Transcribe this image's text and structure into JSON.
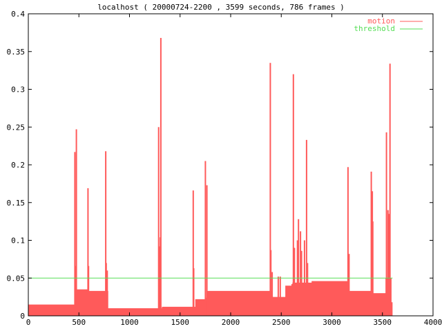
{
  "chart_data": {
    "type": "area",
    "title": "localhost ( 20000724-2200 , 3599 seconds, 786 frames )",
    "xlabel": "",
    "ylabel": "",
    "xlim": [
      0,
      4000
    ],
    "ylim": [
      0,
      0.4
    ],
    "xticks": [
      0,
      500,
      1000,
      1500,
      2000,
      2500,
      3000,
      3500,
      4000
    ],
    "yticks": [
      0,
      0.05,
      0.1,
      0.15,
      0.2,
      0.25,
      0.3,
      0.35,
      0.4
    ],
    "legend_position": "top-right",
    "grid": false,
    "series": [
      {
        "name": "motion",
        "color": "#ff5a5a",
        "style": "filled-impulses",
        "baseline": [
          [
            0,
            0.015
          ],
          [
            450,
            0.015
          ],
          [
            460,
            0.035
          ],
          [
            590,
            0.035
          ],
          [
            600,
            0.033
          ],
          [
            760,
            0.033
          ],
          [
            790,
            0.01
          ],
          [
            1300,
            0.01
          ],
          [
            1320,
            0.012
          ],
          [
            1620,
            0.012
          ],
          [
            1650,
            0.022
          ],
          [
            1750,
            0.024
          ],
          [
            1760,
            0.033
          ],
          [
            2400,
            0.033
          ],
          [
            2410,
            0.025
          ],
          [
            2520,
            0.025
          ],
          [
            2540,
            0.04
          ],
          [
            2600,
            0.042
          ],
          [
            2610,
            0.044
          ],
          [
            2800,
            0.046
          ],
          [
            3000,
            0.046
          ],
          [
            3160,
            0.044
          ],
          [
            3170,
            0.033
          ],
          [
            3400,
            0.033
          ],
          [
            3410,
            0.03
          ],
          [
            3520,
            0.03
          ],
          [
            3530,
            0.05
          ],
          [
            3580,
            0.05
          ],
          [
            3590,
            0.018
          ],
          [
            3600,
            0.018
          ]
        ],
        "spikes": [
          [
            460,
            0.217
          ],
          [
            475,
            0.247
          ],
          [
            470,
            0.066
          ],
          [
            590,
            0.169
          ],
          [
            595,
            0.066
          ],
          [
            765,
            0.218
          ],
          [
            770,
            0.07
          ],
          [
            780,
            0.06
          ],
          [
            1288,
            0.25
          ],
          [
            1295,
            0.092
          ],
          [
            1310,
            0.368
          ],
          [
            1305,
            0.104
          ],
          [
            1630,
            0.166
          ],
          [
            1635,
            0.063
          ],
          [
            1750,
            0.205
          ],
          [
            1765,
            0.173
          ],
          [
            2392,
            0.335
          ],
          [
            2397,
            0.087
          ],
          [
            2410,
            0.058
          ],
          [
            2470,
            0.052
          ],
          [
            2490,
            0.052
          ],
          [
            2620,
            0.32
          ],
          [
            2630,
            0.09
          ],
          [
            2660,
            0.1
          ],
          [
            2670,
            0.128
          ],
          [
            2690,
            0.112
          ],
          [
            2700,
            0.086
          ],
          [
            2730,
            0.1
          ],
          [
            2750,
            0.233
          ],
          [
            2760,
            0.07
          ],
          [
            3160,
            0.197
          ],
          [
            3170,
            0.082
          ],
          [
            3390,
            0.191
          ],
          [
            3400,
            0.165
          ],
          [
            3405,
            0.125
          ],
          [
            3540,
            0.243
          ],
          [
            3555,
            0.14
          ],
          [
            3565,
            0.135
          ],
          [
            3575,
            0.334
          ]
        ]
      },
      {
        "name": "threshold",
        "color": "#55dd55",
        "style": "line",
        "x": [
          0,
          3600
        ],
        "y": [
          0.05,
          0.05
        ]
      }
    ]
  }
}
